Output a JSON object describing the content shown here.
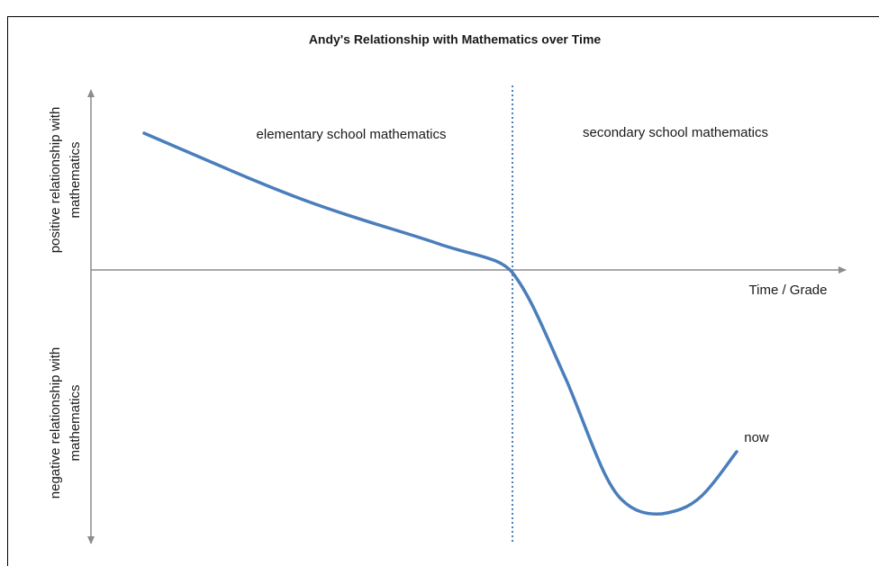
{
  "title": "Andy's Relationship with Mathematics over Time",
  "y_axis": {
    "positive": [
      "positive relationship with",
      "mathematics"
    ],
    "negative": [
      "negative relationship with",
      "mathematics"
    ]
  },
  "x_axis_label": "Time / Grade",
  "regions": [
    "elementary school mathematics",
    "secondary school mathematics"
  ],
  "annotation": "now"
}
